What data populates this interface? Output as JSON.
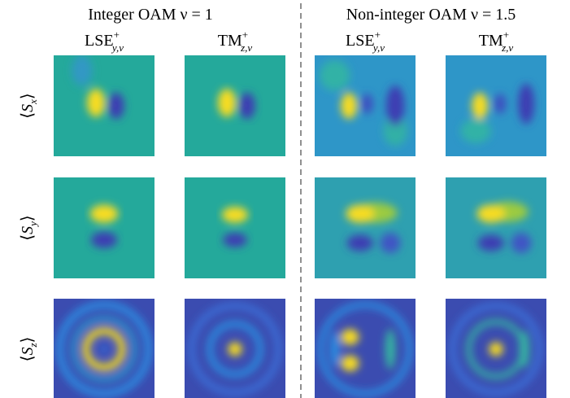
{
  "groups": [
    {
      "title": "Integer OAM ν = 1"
    },
    {
      "title": "Non-integer OAM ν = 1.5"
    }
  ],
  "columns": [
    {
      "base": "LSE",
      "sup": "+",
      "sub": "y,ν"
    },
    {
      "base": "TM",
      "sup": "+",
      "sub": "z,ν"
    },
    {
      "base": "LSE",
      "sup": "+",
      "sub": "y,ν"
    },
    {
      "base": "TM",
      "sup": "+",
      "sub": "z,ν"
    }
  ],
  "rows": [
    {
      "open": "⟨",
      "base": "S",
      "sub": "x",
      "close": "⟩"
    },
    {
      "open": "⟨",
      "base": "S",
      "sub": "y",
      "close": "⟩"
    },
    {
      "open": "⟨",
      "base": "S",
      "sub": "z",
      "close": "⟩"
    }
  ]
}
